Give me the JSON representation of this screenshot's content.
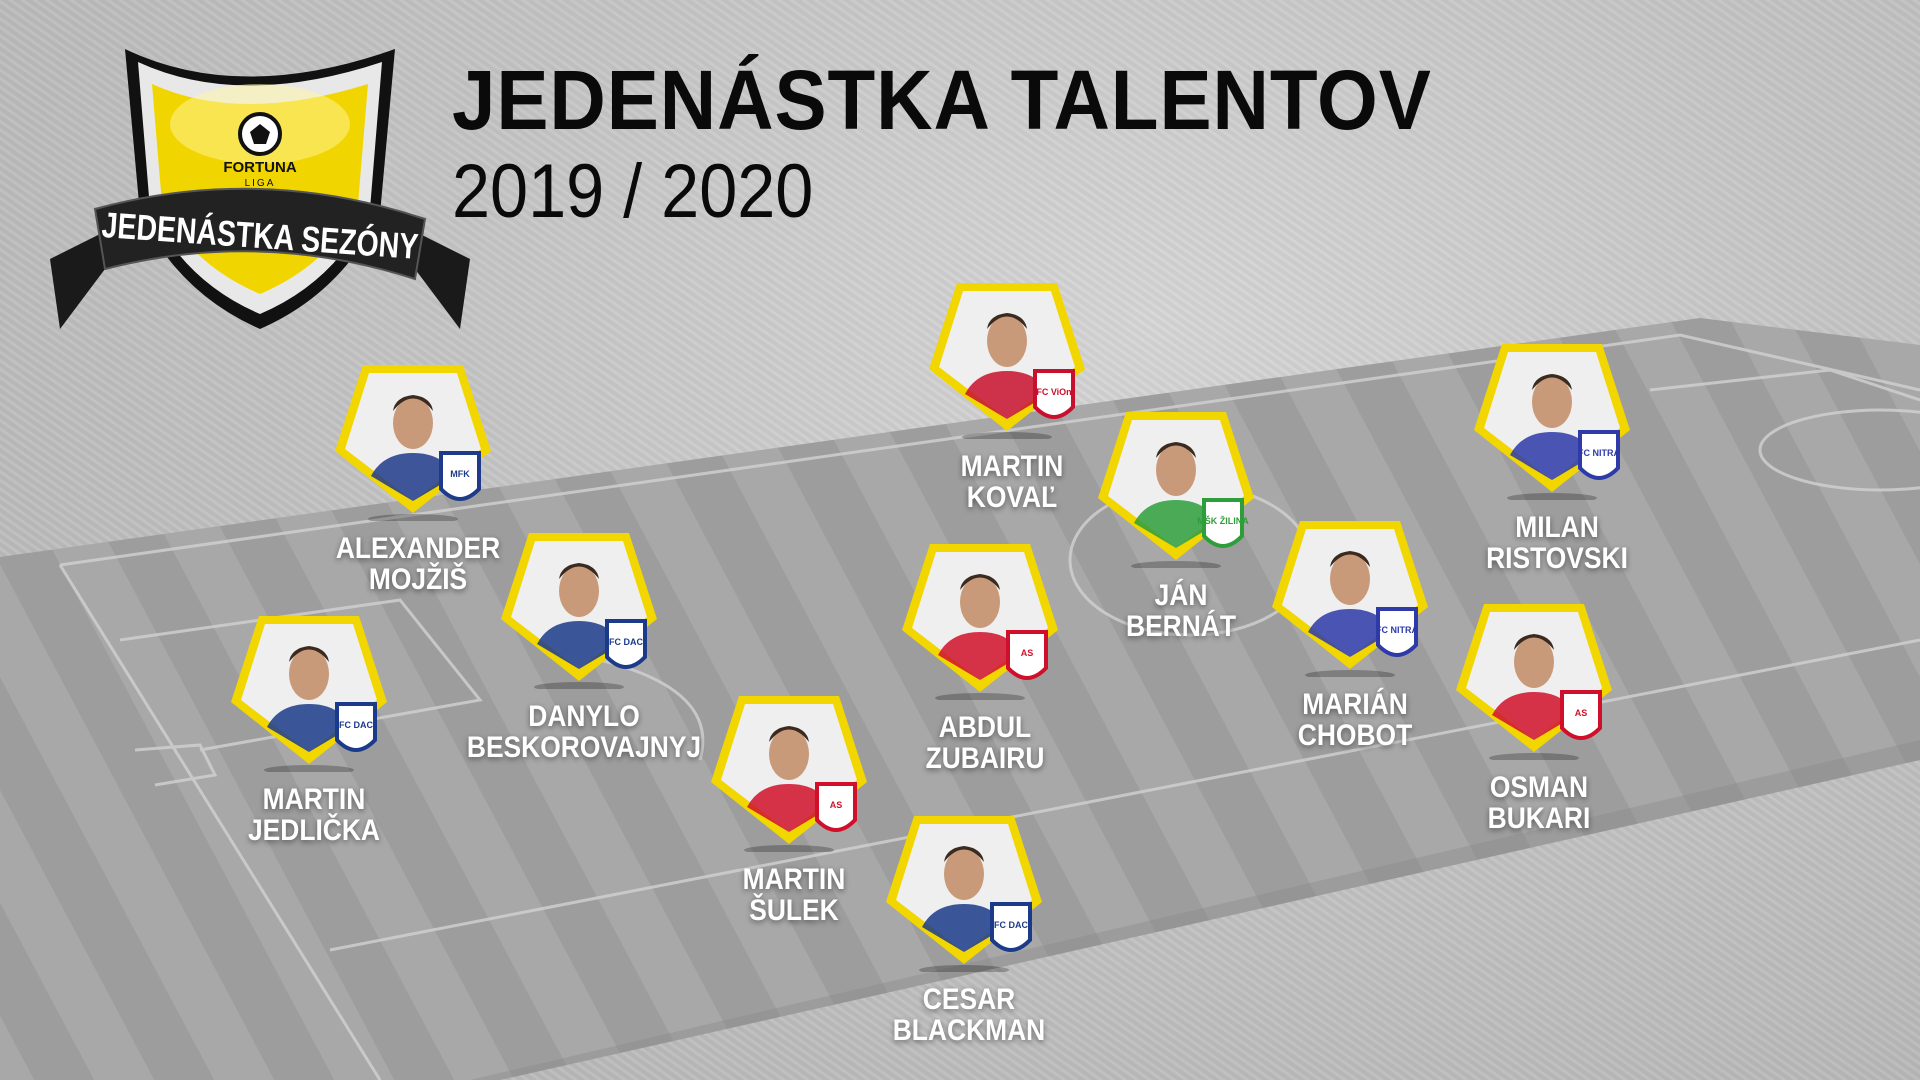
{
  "header": {
    "title": "JEDENÁSTKA TALENTOV",
    "season": "2019 / 2020"
  },
  "logo": {
    "brand": "FORTUNA",
    "league": "LIGA",
    "ribbon": "JEDENÁSTKA SEZÓNY"
  },
  "colors": {
    "card_border": "#f2d600",
    "pitch_light": "#a9a9a9",
    "pitch_dark": "#9c9c9c",
    "name_text": "#ffffff"
  },
  "players": [
    {
      "first": "MARTIN",
      "last": "KOVAĽ",
      "club": "FC ViOn",
      "badge_color": "#c8102e"
    },
    {
      "first": "ALEXANDER",
      "last": "MOJŽIŠ",
      "club": "MFK",
      "badge_color": "#1e3a8a"
    },
    {
      "first": "JÁN",
      "last": "BERNÁT",
      "club": "MŠK ŽILINA",
      "badge_color": "#2e9e3a"
    },
    {
      "first": "MILAN",
      "last": "RISTOVSKI",
      "club": "FC NITRA",
      "badge_color": "#2d3aa8"
    },
    {
      "first": "DANYLO",
      "last": "BESKOROVAJNYJ",
      "club": "FC DAC",
      "badge_color": "#1b3a8a"
    },
    {
      "first": "ABDUL",
      "last": "ZUBAIRU",
      "club": "AS",
      "badge_color": "#d0102a"
    },
    {
      "first": "MARIÁN",
      "last": "CHOBOT",
      "club": "FC NITRA",
      "badge_color": "#2d3aa8"
    },
    {
      "first": "MARTIN",
      "last": "JEDLIČKA",
      "club": "FC DAC",
      "badge_color": "#1b3a8a"
    },
    {
      "first": "OSMAN",
      "last": "BUKARI",
      "club": "AS",
      "badge_color": "#d0102a"
    },
    {
      "first": "MARTIN",
      "last": "ŠULEK",
      "club": "AS",
      "badge_color": "#d0102a"
    },
    {
      "first": "CESAR",
      "last": "BLACKMAN",
      "club": "FC DAC",
      "badge_color": "#1b3a8a"
    }
  ]
}
